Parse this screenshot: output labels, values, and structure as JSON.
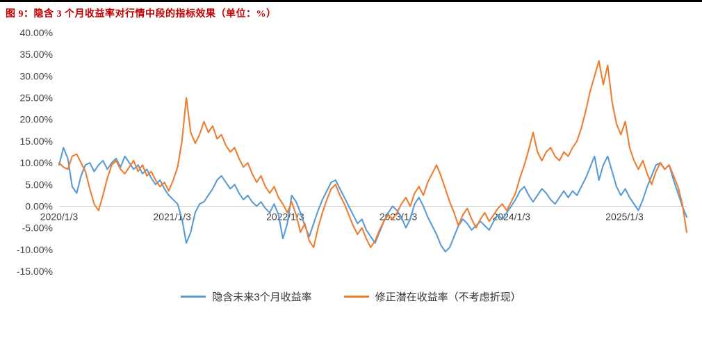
{
  "chart_data": {
    "type": "line",
    "title": "图 9：隐含 3 个月收益率对行情中段的指标效果（单位：%）",
    "xlabel": "",
    "ylabel": "",
    "ylim": [
      -15,
      40
    ],
    "x_start": 2020.0,
    "x_end": 2025.55,
    "x_unit": "year",
    "gridlines": "zero-axis-only",
    "legend_position": "bottom",
    "axis_line_color": "#c9c9c9",
    "y_tick_values": [
      40,
      35,
      30,
      25,
      20,
      15,
      10,
      5,
      0,
      -5,
      -10,
      -15
    ],
    "y_tick_labels": [
      "40.00%",
      "35.00%",
      "30.00%",
      "25.00%",
      "20.00%",
      "15.00%",
      "10.00%",
      "5.00%",
      "0.00%",
      "-5.00%",
      "-10.00%",
      "-15.00%"
    ],
    "x_tick_values": [
      2020.0,
      2021.0,
      2022.0,
      2023.0,
      2024.0,
      2025.0
    ],
    "x_tick_labels": [
      "2020/1/3",
      "2021/1/3",
      "2022/1/3",
      "2023/1/3",
      "2024/1/3",
      "2025/1/3"
    ],
    "series": [
      {
        "name": "隐含未来3个月收益率",
        "color": "#5B9BD5",
        "values": [
          9.5,
          13.5,
          11.0,
          4.5,
          3.0,
          7.0,
          9.5,
          10.0,
          8.0,
          9.5,
          10.5,
          8.5,
          10.0,
          11.0,
          9.0,
          11.5,
          10.0,
          8.5,
          9.5,
          7.5,
          8.5,
          6.5,
          5.0,
          6.0,
          4.0,
          2.5,
          1.5,
          0.5,
          -3.0,
          -8.5,
          -6.0,
          -1.5,
          0.5,
          1.0,
          2.5,
          4.0,
          6.0,
          7.0,
          5.5,
          4.0,
          5.0,
          3.0,
          1.5,
          2.5,
          1.0,
          0.0,
          1.0,
          -0.5,
          -1.5,
          0.5,
          -2.0,
          -7.5,
          -4.0,
          2.5,
          1.0,
          -1.5,
          -4.5,
          -7.0,
          -4.0,
          -1.0,
          1.5,
          3.5,
          5.5,
          6.0,
          4.0,
          2.0,
          0.0,
          -2.0,
          -4.0,
          -3.0,
          -5.5,
          -7.0,
          -8.5,
          -6.0,
          -3.5,
          -1.5,
          0.0,
          -1.0,
          -2.5,
          -5.0,
          -3.0,
          0.5,
          2.0,
          0.0,
          -2.5,
          -4.5,
          -6.5,
          -9.0,
          -10.5,
          -9.5,
          -7.0,
          -4.5,
          -3.0,
          -4.0,
          -5.5,
          -4.5,
          -3.5,
          -4.5,
          -5.5,
          -3.5,
          -2.0,
          -3.0,
          -1.5,
          0.0,
          1.5,
          3.5,
          4.5,
          2.5,
          1.0,
          2.5,
          4.0,
          3.0,
          1.5,
          0.5,
          2.0,
          3.5,
          2.0,
          3.5,
          2.5,
          4.5,
          6.5,
          9.0,
          11.5,
          6.0,
          9.5,
          11.5,
          8.0,
          4.5,
          2.5,
          4.0,
          2.0,
          0.5,
          -1.0,
          1.5,
          4.5,
          7.0,
          9.5,
          10.0,
          8.5,
          9.5,
          6.0,
          3.0,
          0.0,
          -2.5
        ]
      },
      {
        "name": "修正潜在收益率（不考虑折现）",
        "color": "#ED7D31",
        "values": [
          10.0,
          9.0,
          8.5,
          11.5,
          12.0,
          10.0,
          8.0,
          4.0,
          0.5,
          -1.0,
          2.5,
          6.5,
          9.5,
          10.5,
          8.5,
          7.5,
          9.0,
          10.5,
          8.0,
          9.5,
          7.0,
          8.0,
          6.0,
          4.5,
          5.5,
          3.5,
          6.0,
          9.0,
          15.0,
          25.0,
          17.0,
          14.5,
          16.5,
          19.5,
          17.0,
          18.5,
          15.5,
          16.5,
          14.0,
          12.5,
          13.5,
          11.0,
          9.0,
          10.0,
          7.5,
          5.5,
          7.0,
          4.5,
          3.0,
          4.5,
          2.0,
          0.5,
          -1.5,
          1.0,
          -2.0,
          -6.0,
          -4.0,
          -8.0,
          -9.5,
          -5.0,
          -1.5,
          1.5,
          4.0,
          5.0,
          2.5,
          0.5,
          -2.0,
          -4.5,
          -6.5,
          -5.0,
          -7.5,
          -9.5,
          -8.0,
          -5.5,
          -3.5,
          -2.0,
          -3.0,
          -1.5,
          0.5,
          2.0,
          0.0,
          3.0,
          4.5,
          2.5,
          5.5,
          7.5,
          9.5,
          7.0,
          4.0,
          1.0,
          -1.5,
          -4.5,
          -2.0,
          -0.5,
          -3.0,
          -5.0,
          -3.0,
          -1.5,
          -3.5,
          -2.0,
          -0.5,
          0.5,
          -1.0,
          1.0,
          3.0,
          6.5,
          9.5,
          13.0,
          17.0,
          12.5,
          10.5,
          12.5,
          13.5,
          11.5,
          10.5,
          12.5,
          11.5,
          13.5,
          15.0,
          18.0,
          22.0,
          26.5,
          30.0,
          33.5,
          28.0,
          32.5,
          24.0,
          19.0,
          16.5,
          19.5,
          13.5,
          10.5,
          8.5,
          10.5,
          7.5,
          5.0,
          8.0,
          10.0,
          8.5,
          9.5,
          7.0,
          4.5,
          0.5,
          -6.0
        ]
      }
    ]
  }
}
